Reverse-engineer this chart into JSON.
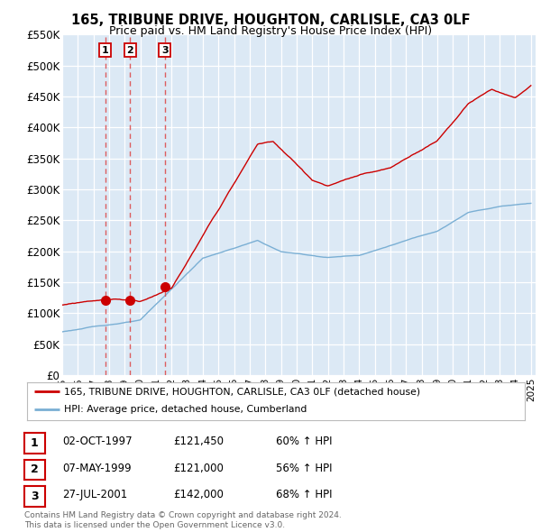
{
  "title1": "165, TRIBUNE DRIVE, HOUGHTON, CARLISLE, CA3 0LF",
  "title2": "Price paid vs. HM Land Registry's House Price Index (HPI)",
  "ytick_vals": [
    0,
    50000,
    100000,
    150000,
    200000,
    250000,
    300000,
    350000,
    400000,
    450000,
    500000,
    550000
  ],
  "ylabel_ticks": [
    "£0",
    "£50K",
    "£100K",
    "£150K",
    "£200K",
    "£250K",
    "£300K",
    "£350K",
    "£400K",
    "£450K",
    "£500K",
    "£550K"
  ],
  "sale_years_float": [
    1997.75,
    1999.35,
    2001.56
  ],
  "sale_prices": [
    121450,
    121000,
    142000
  ],
  "sale_labels": [
    "1",
    "2",
    "3"
  ],
  "legend_red": "165, TRIBUNE DRIVE, HOUGHTON, CARLISLE, CA3 0LF (detached house)",
  "legend_blue": "HPI: Average price, detached house, Cumberland",
  "table_rows": [
    [
      "1",
      "02-OCT-1997",
      "£121,450",
      "60% ↑ HPI"
    ],
    [
      "2",
      "07-MAY-1999",
      "£121,000",
      "56% ↑ HPI"
    ],
    [
      "3",
      "27-JUL-2001",
      "£142,000",
      "68% ↑ HPI"
    ]
  ],
  "footnote1": "Contains HM Land Registry data © Crown copyright and database right 2024.",
  "footnote2": "This data is licensed under the Open Government Licence v3.0.",
  "bg_color": "#dce9f5",
  "red_line_color": "#cc0000",
  "blue_line_color": "#7aafd4",
  "sale_marker_color": "#cc0000",
  "dashed_color": "#dd4444"
}
